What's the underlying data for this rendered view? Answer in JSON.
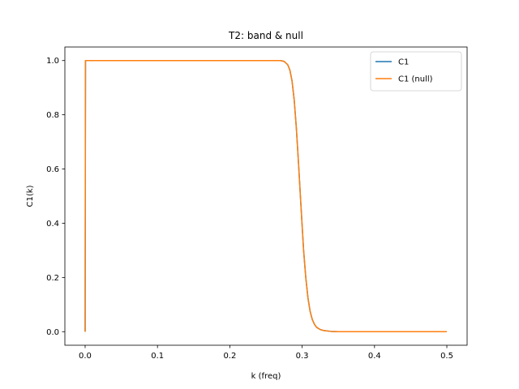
{
  "chart_data": {
    "type": "line",
    "title": "T2: band & null",
    "xlabel": "k (freq)",
    "ylabel": "C1(k)",
    "xlim": [
      -0.028,
      0.528
    ],
    "ylim": [
      -0.05,
      1.05
    ],
    "xticks": [
      0.0,
      0.1,
      0.2,
      0.3,
      0.4,
      0.5
    ],
    "xtick_labels": [
      "0.0",
      "0.1",
      "0.2",
      "0.3",
      "0.4",
      "0.5"
    ],
    "yticks": [
      0.0,
      0.2,
      0.4,
      0.6,
      0.8,
      1.0
    ],
    "ytick_labels": [
      "0.0",
      "0.2",
      "0.4",
      "0.6",
      "0.8",
      "1.0"
    ],
    "grid": false,
    "legend": "top-right",
    "x": [
      0.0,
      0.0005,
      0.001,
      0.002,
      0.01,
      0.05,
      0.1,
      0.15,
      0.2,
      0.25,
      0.27,
      0.275,
      0.28,
      0.283,
      0.286,
      0.289,
      0.292,
      0.295,
      0.298,
      0.3,
      0.302,
      0.305,
      0.308,
      0.311,
      0.314,
      0.317,
      0.32,
      0.325,
      0.33,
      0.34,
      0.35,
      0.4,
      0.45,
      0.5
    ],
    "series": [
      {
        "name": "C1",
        "color": "#1f77b4",
        "values": [
          0.0,
          1.0,
          1.0,
          1.0,
          1.0,
          1.0,
          1.0,
          1.0,
          1.0,
          1.0,
          1.0,
          0.997,
          0.985,
          0.965,
          0.925,
          0.855,
          0.75,
          0.62,
          0.48,
          0.39,
          0.3,
          0.2,
          0.125,
          0.075,
          0.045,
          0.027,
          0.016,
          0.008,
          0.004,
          0.001,
          0.0,
          0.0,
          0.0,
          0.0
        ]
      },
      {
        "name": "C1 (null)",
        "color": "#ff7f0e",
        "values": [
          0.0,
          1.0,
          1.0,
          1.0,
          1.0,
          1.0,
          1.0,
          1.0,
          1.0,
          1.0,
          1.0,
          0.997,
          0.985,
          0.965,
          0.925,
          0.855,
          0.75,
          0.62,
          0.48,
          0.39,
          0.3,
          0.2,
          0.125,
          0.075,
          0.045,
          0.027,
          0.016,
          0.008,
          0.004,
          0.001,
          0.0,
          0.0,
          0.0,
          0.0
        ]
      }
    ]
  }
}
